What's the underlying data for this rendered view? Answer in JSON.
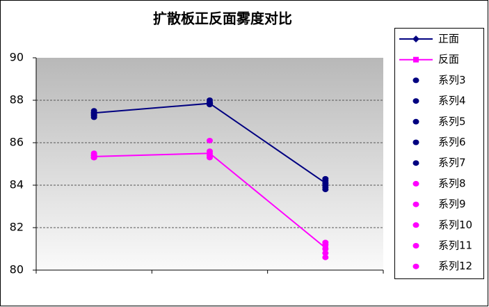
{
  "chart_data": {
    "type": "line",
    "title": "扩散板正反面雾度对比",
    "categories": [
      null,
      null,
      null
    ],
    "ylim": [
      80,
      90
    ],
    "yticks": [
      80,
      82,
      84,
      86,
      88,
      90
    ],
    "grid": true,
    "series": [
      {
        "name": "正面",
        "color": "#000080",
        "marker": "diamond",
        "line": true,
        "values": [
          87.4,
          87.85,
          84.1
        ]
      },
      {
        "name": "反面",
        "color": "#ff00ff",
        "marker": "square",
        "line": true,
        "values": [
          85.35,
          85.5,
          81.05
        ]
      },
      {
        "name": "系列3",
        "color": "#000080",
        "marker": "circle",
        "line": false,
        "values": [
          87.5,
          88.0,
          84.3
        ]
      },
      {
        "name": "系列4",
        "color": "#000080",
        "marker": "circle",
        "line": false,
        "values": [
          87.4,
          87.9,
          84.2
        ]
      },
      {
        "name": "系列5",
        "color": "#000080",
        "marker": "circle",
        "line": false,
        "values": [
          87.3,
          87.8,
          84.0
        ]
      },
      {
        "name": "系列6",
        "color": "#000080",
        "marker": "circle",
        "line": false,
        "values": [
          87.2,
          87.9,
          83.9
        ]
      },
      {
        "name": "系列7",
        "color": "#000080",
        "marker": "circle",
        "line": false,
        "values": [
          87.3,
          87.8,
          83.8
        ]
      },
      {
        "name": "系列8",
        "color": "#ff00ff",
        "marker": "circle",
        "line": false,
        "values": [
          85.5,
          86.1,
          81.3
        ]
      },
      {
        "name": "系列9",
        "color": "#ff00ff",
        "marker": "circle",
        "line": false,
        "values": [
          85.4,
          85.6,
          81.2
        ]
      },
      {
        "name": "系列10",
        "color": "#ff00ff",
        "marker": "circle",
        "line": false,
        "values": [
          85.3,
          85.4,
          81.0
        ]
      },
      {
        "name": "系列11",
        "color": "#ff00ff",
        "marker": "circle",
        "line": false,
        "values": [
          85.4,
          85.3,
          80.8
        ]
      },
      {
        "name": "系列12",
        "color": "#ff00ff",
        "marker": "circle",
        "line": false,
        "values": [
          85.3,
          85.5,
          80.6
        ]
      }
    ]
  }
}
